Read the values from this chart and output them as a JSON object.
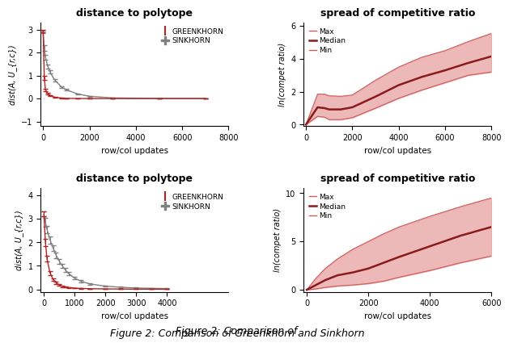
{
  "fig_width": 6.4,
  "fig_height": 4.33,
  "top_left": {
    "title": "distance to polytope",
    "title_fontsize": 9,
    "title_fontweight": "bold",
    "ylabel": "dist(A, U_{r,c})",
    "xlabel": "row/col updates",
    "xlim": [
      -100,
      8000
    ],
    "ylim": [
      -1.2,
      3.3
    ],
    "yticks": [
      -1,
      0,
      1,
      2,
      3
    ],
    "xticks": [
      0,
      2000,
      4000,
      6000,
      8000
    ],
    "greenkhorn_x": [
      0,
      50,
      100,
      200,
      300,
      500,
      800,
      1000,
      1500,
      2000,
      3000,
      5000,
      7000
    ],
    "greenkhorn_y": [
      2.95,
      0.9,
      0.38,
      0.22,
      0.12,
      0.06,
      0.02,
      0.01,
      0.005,
      0.002,
      0.001,
      0.001,
      0.001
    ],
    "greenkhorn_err": [
      0.05,
      0.08,
      0.05,
      0.03,
      0.02,
      0.015,
      0.008,
      0.004,
      0.002,
      0.001,
      0.0005,
      0.0005,
      0.0005
    ],
    "sinkhorn_x": [
      0,
      50,
      100,
      200,
      300,
      500,
      800,
      1000,
      1500,
      2000,
      3000,
      5000,
      7000
    ],
    "sinkhorn_y": [
      2.9,
      2.2,
      1.8,
      1.4,
      1.15,
      0.8,
      0.5,
      0.38,
      0.2,
      0.1,
      0.03,
      0.01,
      0.005
    ],
    "sinkhorn_err": [
      0.05,
      0.12,
      0.1,
      0.08,
      0.07,
      0.06,
      0.04,
      0.035,
      0.025,
      0.018,
      0.008,
      0.003,
      0.002
    ],
    "greenkhorn_color": "#b22222",
    "sinkhorn_color": "#808080"
  },
  "top_right": {
    "title": "spread of competitive ratio",
    "title_fontsize": 9,
    "title_fontweight": "bold",
    "ylabel": "ln(compet ratio)",
    "xlabel": "row/col updates",
    "xlim": [
      -100,
      8000
    ],
    "ylim": [
      -0.1,
      6.2
    ],
    "yticks": [
      0,
      2,
      4,
      6
    ],
    "xticks": [
      0,
      2000,
      4000,
      6000,
      8000
    ],
    "x": [
      0,
      500,
      800,
      1000,
      1500,
      2000,
      3000,
      4000,
      5000,
      6000,
      7000,
      8000
    ],
    "median": [
      0.0,
      1.05,
      1.0,
      0.92,
      0.92,
      1.05,
      1.7,
      2.4,
      2.9,
      3.3,
      3.75,
      4.15
    ],
    "max_vals": [
      0.0,
      1.85,
      1.85,
      1.75,
      1.72,
      1.8,
      2.7,
      3.5,
      4.1,
      4.5,
      5.05,
      5.55
    ],
    "min_vals": [
      0.0,
      0.5,
      0.45,
      0.3,
      0.3,
      0.42,
      1.0,
      1.6,
      2.1,
      2.55,
      3.0,
      3.2
    ],
    "fill_color": "#e8a0a0",
    "line_color": "#8b1a1a",
    "line_thin_color": "#cd5c5c"
  },
  "bottom_left": {
    "title": "distance to polytope",
    "title_fontsize": 9,
    "title_fontweight": "bold",
    "ylabel": "dist(A, U_{r,c})",
    "xlabel": "row/col updates",
    "xlim": [
      -100,
      6000
    ],
    "ylim": [
      -0.1,
      4.3
    ],
    "yticks": [
      0,
      1,
      2,
      3,
      4
    ],
    "xticks": [
      0,
      1000,
      2000,
      3000,
      4000
    ],
    "greenkhorn_x": [
      0,
      50,
      100,
      200,
      300,
      400,
      500,
      600,
      700,
      800,
      1000,
      1200,
      1500,
      2000,
      2500,
      3000,
      3500,
      4000
    ],
    "greenkhorn_y": [
      3.2,
      2.0,
      1.3,
      0.7,
      0.42,
      0.28,
      0.19,
      0.13,
      0.1,
      0.08,
      0.055,
      0.04,
      0.03,
      0.02,
      0.015,
      0.012,
      0.01,
      0.009
    ],
    "greenkhorn_err": [
      0.1,
      0.15,
      0.12,
      0.08,
      0.05,
      0.04,
      0.03,
      0.025,
      0.02,
      0.018,
      0.012,
      0.01,
      0.008,
      0.006,
      0.005,
      0.004,
      0.003,
      0.003
    ],
    "sinkhorn_x": [
      0,
      50,
      100,
      200,
      300,
      400,
      500,
      600,
      700,
      800,
      1000,
      1200,
      1500,
      2000,
      2500,
      3000,
      3500,
      4000
    ],
    "sinkhorn_y": [
      3.2,
      2.85,
      2.55,
      2.1,
      1.75,
      1.45,
      1.2,
      1.0,
      0.82,
      0.68,
      0.48,
      0.35,
      0.23,
      0.14,
      0.09,
      0.06,
      0.045,
      0.035
    ],
    "sinkhorn_err": [
      0.1,
      0.18,
      0.16,
      0.14,
      0.13,
      0.12,
      0.1,
      0.09,
      0.08,
      0.07,
      0.06,
      0.055,
      0.04,
      0.03,
      0.025,
      0.02,
      0.015,
      0.012
    ],
    "greenkhorn_color": "#b22222",
    "sinkhorn_color": "#808080"
  },
  "bottom_right": {
    "title": "spread of competitive ratio",
    "title_fontsize": 9,
    "title_fontweight": "bold",
    "ylabel": "ln(compet ratio)",
    "xlabel": "row/col updates",
    "xlim": [
      -100,
      6000
    ],
    "ylim": [
      -0.2,
      10.5
    ],
    "yticks": [
      0,
      5,
      10
    ],
    "xticks": [
      0,
      2000,
      4000,
      6000
    ],
    "x": [
      0,
      300,
      600,
      1000,
      1500,
      2000,
      2500,
      3000,
      4000,
      5000,
      6000
    ],
    "median": [
      0.0,
      0.5,
      1.0,
      1.5,
      1.8,
      2.2,
      2.8,
      3.4,
      4.5,
      5.6,
      6.5
    ],
    "max_vals": [
      0.0,
      1.2,
      2.2,
      3.2,
      4.2,
      5.0,
      5.8,
      6.5,
      7.6,
      8.6,
      9.5
    ],
    "min_vals": [
      0.0,
      0.1,
      0.25,
      0.4,
      0.5,
      0.65,
      0.9,
      1.3,
      2.0,
      2.8,
      3.5
    ],
    "fill_color": "#e8a0a0",
    "line_color": "#8b1a1a",
    "line_thin_color": "#cd5c5c"
  },
  "caption": "Figure 2: Comparison of ",
  "caption_greenkhorn": "Greenkhorn",
  "caption_and": " and ",
  "caption_sinkhorn": "Sinkhorn",
  "caption_fontsize": 9
}
